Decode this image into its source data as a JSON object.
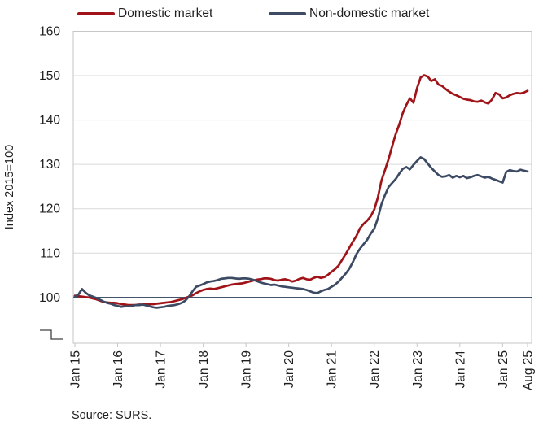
{
  "legend": {
    "items": [
      {
        "label": "Domestic market",
        "color": "#A01419"
      },
      {
        "label": "Non-domestic market",
        "color": "#3C4A63"
      }
    ]
  },
  "y_axis_title": "Index 2015=100",
  "source_note": "Source: SURS.",
  "colors": {
    "domestic_line": "#A01419",
    "non_domestic_line": "#3C4A63",
    "reference_line_100": "#44546A",
    "gridline": "#D9D9D9",
    "axis_frame": "#C6C6C6",
    "text": "#1F1F1F",
    "axis_break_glyph": "#404040"
  },
  "chart_data": {
    "type": "line",
    "title": "",
    "xlabel": "",
    "ylabel": "Index 2015=100",
    "x_unit": "monthly, Jan 2015 - Aug 2025",
    "ylim": [
      89.7,
      160
    ],
    "y_ticks": [
      100,
      110,
      120,
      130,
      140,
      150,
      160
    ],
    "x_tick_labels": [
      "Jan 15",
      "Jan 16",
      "Jan 17",
      "Jan 18",
      "Jan 19",
      "Jan 20",
      "Jan 21",
      "Jan 22",
      "Jan 23",
      "Jan 24",
      "Jan 25",
      "Aug 25"
    ],
    "x_tick_month_positions": [
      0,
      12,
      24,
      36,
      48,
      60,
      72,
      84,
      96,
      108,
      120,
      127
    ],
    "grid": true,
    "legend_position": "top",
    "axis_break_below_100": true,
    "reference_line": {
      "value": 100,
      "color": "#44546A"
    },
    "series": [
      {
        "name": "Domestic market",
        "color": "#A01419",
        "values": [
          100.4,
          100.3,
          100.2,
          100.1,
          100.0,
          99.8,
          99.6,
          99.3,
          99.0,
          98.9,
          98.8,
          98.8,
          98.7,
          98.5,
          98.4,
          98.3,
          98.3,
          98.3,
          98.4,
          98.4,
          98.5,
          98.5,
          98.5,
          98.6,
          98.7,
          98.8,
          98.9,
          99.0,
          99.2,
          99.4,
          99.6,
          99.9,
          100.2,
          100.5,
          101.0,
          101.4,
          101.7,
          101.9,
          102.0,
          101.9,
          102.1,
          102.3,
          102.5,
          102.7,
          102.9,
          103.0,
          103.1,
          103.2,
          103.4,
          103.6,
          103.8,
          104.0,
          104.1,
          104.3,
          104.3,
          104.2,
          103.9,
          103.8,
          104.0,
          104.1,
          103.9,
          103.6,
          103.8,
          104.2,
          104.4,
          104.1,
          104.0,
          104.4,
          104.7,
          104.4,
          104.6,
          105.1,
          105.8,
          106.4,
          107.2,
          108.5,
          109.8,
          111.2,
          112.6,
          113.9,
          115.6,
          116.6,
          117.3,
          118.3,
          119.8,
          122.5,
          126.3,
          128.7,
          131.2,
          134.0,
          136.8,
          139.0,
          141.6,
          143.4,
          144.9,
          143.9,
          147.2,
          149.6,
          150.1,
          149.8,
          148.8,
          149.2,
          148.0,
          147.7,
          147.0,
          146.4,
          145.9,
          145.6,
          145.2,
          144.8,
          144.6,
          144.5,
          144.2,
          144.1,
          144.4,
          144.0,
          143.7,
          144.6,
          146.1,
          145.8,
          144.9,
          145.1,
          145.6,
          145.9,
          146.1,
          146.0,
          146.2,
          146.6
        ]
      },
      {
        "name": "Non-domestic market",
        "color": "#3C4A63",
        "values": [
          100.2,
          100.7,
          101.9,
          101.1,
          100.5,
          100.2,
          99.9,
          99.5,
          99.1,
          98.8,
          98.6,
          98.3,
          98.1,
          97.9,
          98.0,
          98.0,
          98.1,
          98.3,
          98.3,
          98.4,
          98.2,
          98.0,
          97.8,
          97.7,
          97.8,
          97.9,
          98.1,
          98.2,
          98.3,
          98.5,
          98.8,
          99.3,
          100.2,
          101.4,
          102.4,
          102.7,
          103.0,
          103.4,
          103.6,
          103.7,
          103.9,
          104.2,
          104.3,
          104.4,
          104.4,
          104.3,
          104.2,
          104.3,
          104.3,
          104.2,
          104.0,
          103.7,
          103.4,
          103.2,
          103.0,
          102.8,
          102.9,
          102.7,
          102.5,
          102.4,
          102.3,
          102.2,
          102.1,
          102.0,
          101.9,
          101.7,
          101.4,
          101.1,
          101.0,
          101.4,
          101.7,
          101.9,
          102.4,
          102.9,
          103.6,
          104.5,
          105.4,
          106.5,
          108.0,
          109.8,
          111.0,
          112.0,
          113.0,
          114.4,
          115.5,
          117.8,
          121.0,
          123.1,
          124.9,
          125.8,
          126.7,
          127.9,
          129.0,
          129.4,
          128.9,
          129.9,
          130.8,
          131.6,
          131.2,
          130.2,
          129.2,
          128.4,
          127.6,
          127.2,
          127.3,
          127.6,
          127.0,
          127.4,
          127.1,
          127.4,
          126.9,
          127.1,
          127.4,
          127.6,
          127.3,
          127.0,
          127.2,
          126.8,
          126.5,
          126.2,
          125.9,
          128.3,
          128.7,
          128.5,
          128.4,
          128.8,
          128.6,
          128.4
        ]
      }
    ]
  }
}
